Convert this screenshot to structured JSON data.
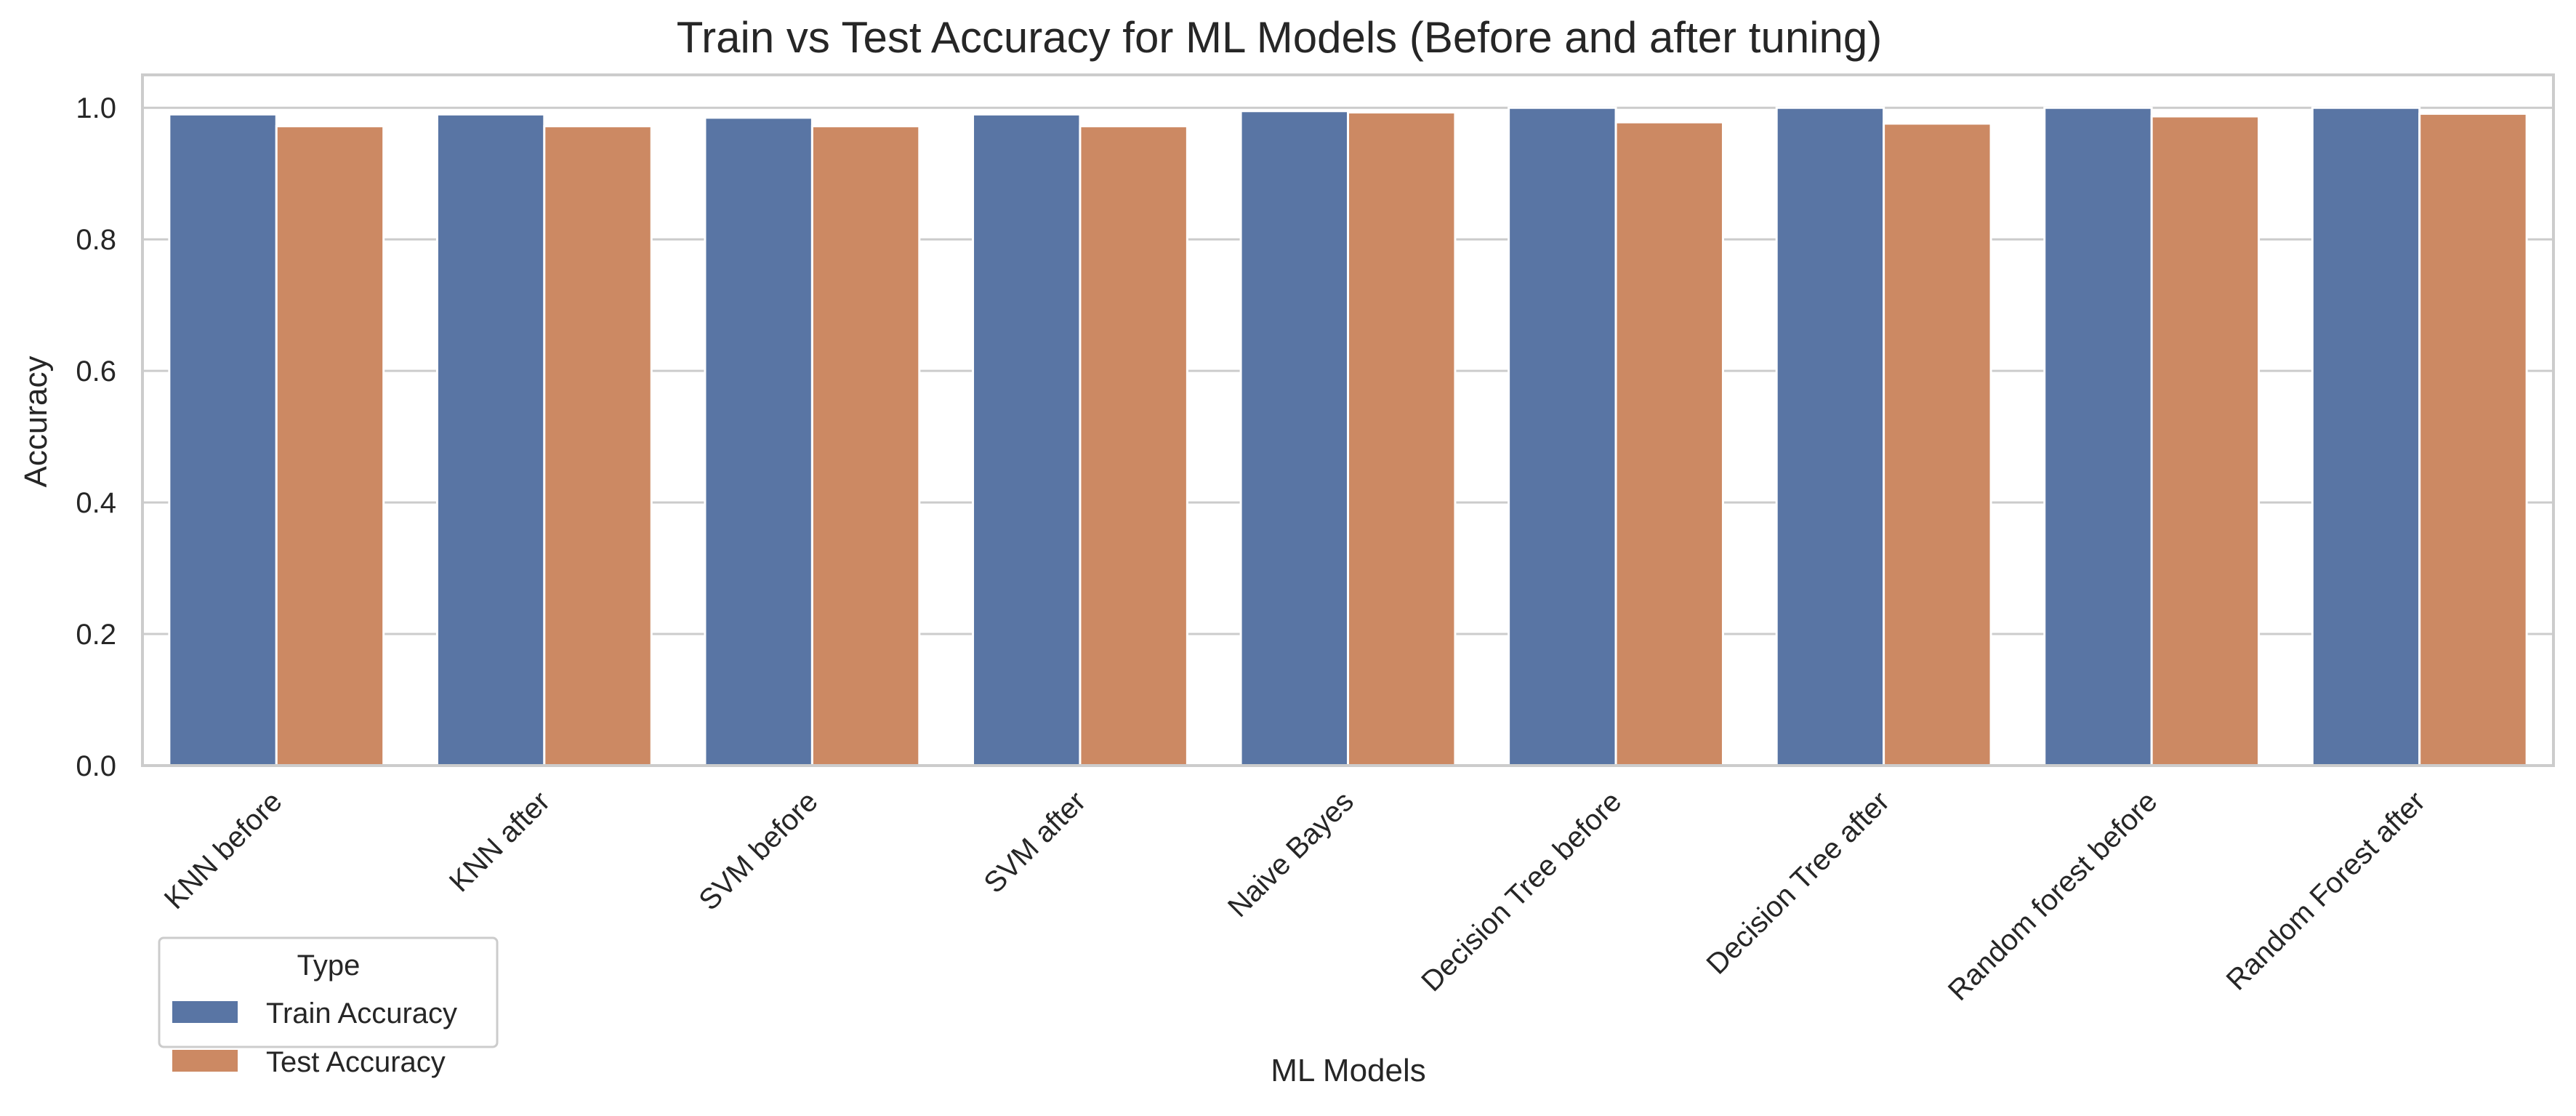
{
  "chart_data": {
    "type": "bar",
    "title": "Train vs Test Accuracy for ML Models (Before and after tuning)",
    "xlabel": "ML Models",
    "ylabel": "Accuracy",
    "categories": [
      "KNN before",
      "KNN after",
      "SVM before",
      "SVM after",
      "Naive Bayes",
      "Decision Tree before",
      "Decision Tree after",
      "Random forest before",
      "Random Forest after"
    ],
    "series": [
      {
        "name": "Train Accuracy",
        "color": "#5975a4",
        "values": [
          0.99,
          0.99,
          0.985,
          0.99,
          0.995,
          1.0,
          1.0,
          1.0,
          1.0
        ]
      },
      {
        "name": "Test Accuracy",
        "color": "#cc8963",
        "values": [
          0.972,
          0.972,
          0.972,
          0.972,
          0.993,
          0.978,
          0.976,
          0.987,
          0.991
        ]
      }
    ],
    "ylim": [
      0,
      1.05
    ],
    "yticks": [
      0.0,
      0.2,
      0.4,
      0.6,
      0.8,
      1.0
    ],
    "ytick_labels": [
      "0.0",
      "0.2",
      "0.4",
      "0.6",
      "0.8",
      "1.0"
    ],
    "grid": "horizontal",
    "legend": {
      "title": "Type",
      "placement": "lower-left, below axes"
    }
  }
}
